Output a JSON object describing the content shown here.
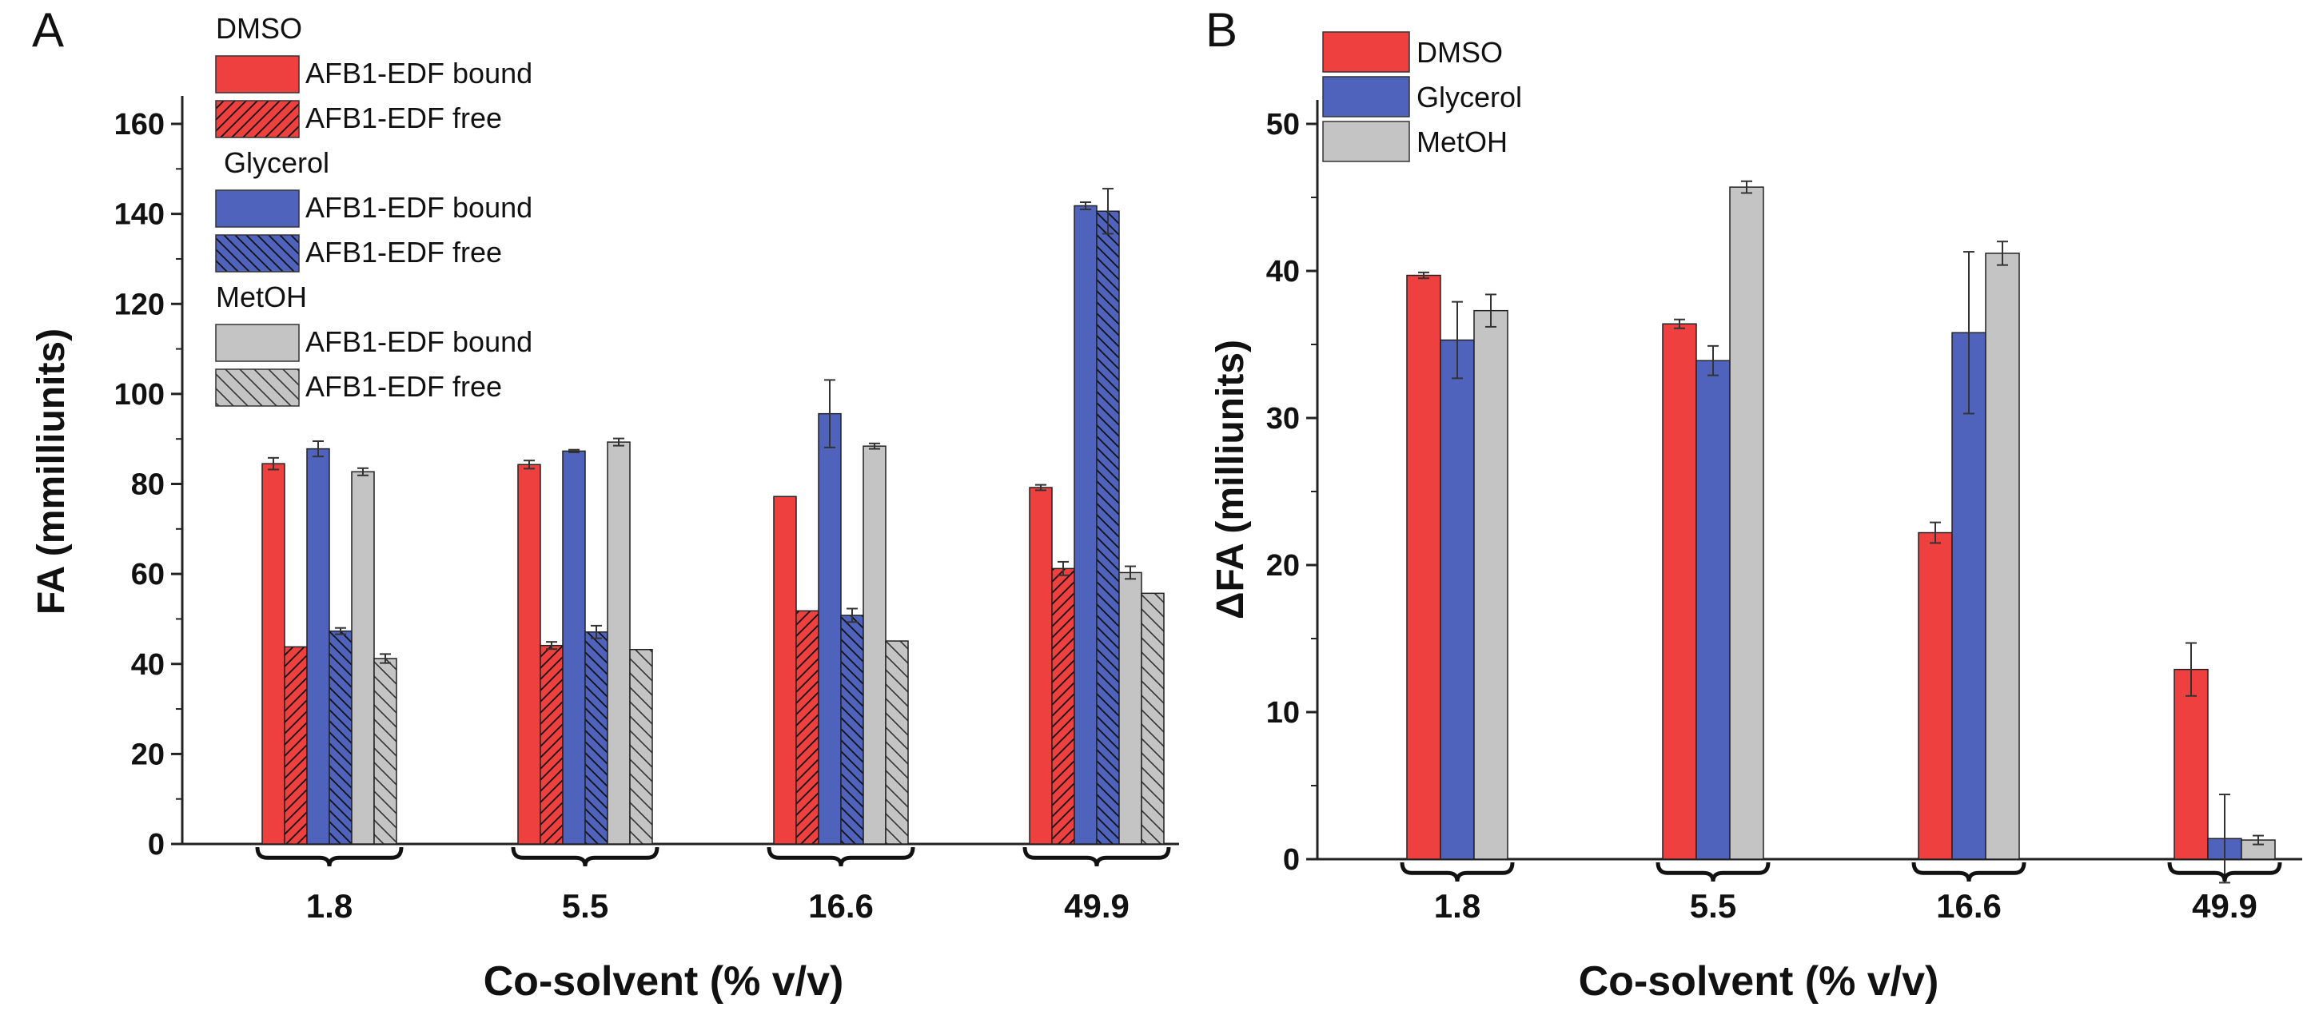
{
  "colors": {
    "dmso": "#ef4040",
    "glycerol": "#4f63bd",
    "metoh": "#c4c4c4",
    "axis": "#222222",
    "error": "#333333"
  },
  "chart_data": [
    {
      "type": "bar",
      "panel_label": "A",
      "title": "",
      "xlabel": "Co-solvent (% v/v)",
      "ylabel": "FA (mmilliunits)",
      "ylim": [
        0,
        160
      ],
      "yticks": [
        0,
        20,
        40,
        60,
        80,
        100,
        120,
        140,
        160
      ],
      "categories": [
        "1.8",
        "5.5",
        "16.6",
        "49.9"
      ],
      "grid": false,
      "legend_position": "top-left",
      "legend_groups": [
        {
          "title": "DMSO",
          "entries": [
            {
              "label": "AFB1-EDF bound",
              "series": 0
            },
            {
              "label": "AFB1-EDF free",
              "series": 1
            }
          ]
        },
        {
          "title": "Glycerol",
          "entries": [
            {
              "label": "AFB1-EDF bound",
              "series": 2
            },
            {
              "label": "AFB1-EDF free",
              "series": 3
            }
          ]
        },
        {
          "title": "MetOH",
          "entries": [
            {
              "label": "AFB1-EDF bound",
              "series": 4
            },
            {
              "label": "AFB1-EDF free",
              "series": 5
            }
          ]
        }
      ],
      "series": [
        {
          "name": "DMSO AFB1-EDF bound",
          "color": "#ef4040",
          "pattern": "solid",
          "values": [
            84.5,
            84.3,
            77.2,
            79.2
          ],
          "errors": [
            1.3,
            0.9,
            0.0,
            0.6
          ]
        },
        {
          "name": "DMSO AFB1-EDF free",
          "color": "#ef4040",
          "pattern": "hatch-fwd",
          "values": [
            43.8,
            44.1,
            51.8,
            61.2
          ],
          "errors": [
            0.0,
            0.8,
            0.0,
            1.5
          ]
        },
        {
          "name": "Glycerol AFB1-EDF bound",
          "color": "#4f63bd",
          "pattern": "solid",
          "values": [
            87.8,
            87.3,
            95.6,
            141.8
          ],
          "errors": [
            1.7,
            0.3,
            7.5,
            0.8
          ]
        },
        {
          "name": "Glycerol AFB1-EDF free",
          "color": "#4f63bd",
          "pattern": "hatch-back",
          "values": [
            47.3,
            47.1,
            50.8,
            140.6
          ],
          "errors": [
            0.7,
            1.4,
            1.5,
            5.0
          ]
        },
        {
          "name": "MetOH AFB1-EDF bound",
          "color": "#c4c4c4",
          "pattern": "solid",
          "values": [
            82.7,
            89.3,
            88.4,
            60.3
          ],
          "errors": [
            0.8,
            0.8,
            0.6,
            1.4
          ]
        },
        {
          "name": "MetOH AFB1-EDF free",
          "color": "#c4c4c4",
          "pattern": "hatch-back-sparse",
          "values": [
            41.2,
            43.2,
            45.1,
            55.7
          ],
          "errors": [
            1.0,
            0.0,
            0.0,
            0.0
          ]
        }
      ]
    },
    {
      "type": "bar",
      "panel_label": "B",
      "title": "",
      "xlabel": "Co-solvent (% v/v)",
      "ylabel": "ΔFA (milliunits)",
      "ylim": [
        0,
        50
      ],
      "yticks": [
        0,
        10,
        20,
        30,
        40,
        50
      ],
      "categories": [
        "1.8",
        "5.5",
        "16.6",
        "49.9"
      ],
      "grid": false,
      "legend_position": "top-left",
      "series": [
        {
          "name": "DMSO",
          "color": "#ef4040",
          "pattern": "solid",
          "values": [
            39.7,
            36.4,
            22.2,
            12.9
          ],
          "errors": [
            0.2,
            0.3,
            0.7,
            1.8
          ]
        },
        {
          "name": "Glycerol",
          "color": "#4f63bd",
          "pattern": "solid",
          "values": [
            35.3,
            33.9,
            35.8,
            1.4
          ],
          "errors": [
            2.6,
            1.0,
            5.5,
            3.0
          ]
        },
        {
          "name": "MetOH",
          "color": "#c4c4c4",
          "pattern": "solid",
          "values": [
            37.3,
            45.7,
            41.2,
            1.3
          ],
          "errors": [
            1.1,
            0.4,
            0.8,
            0.3
          ]
        }
      ]
    }
  ]
}
